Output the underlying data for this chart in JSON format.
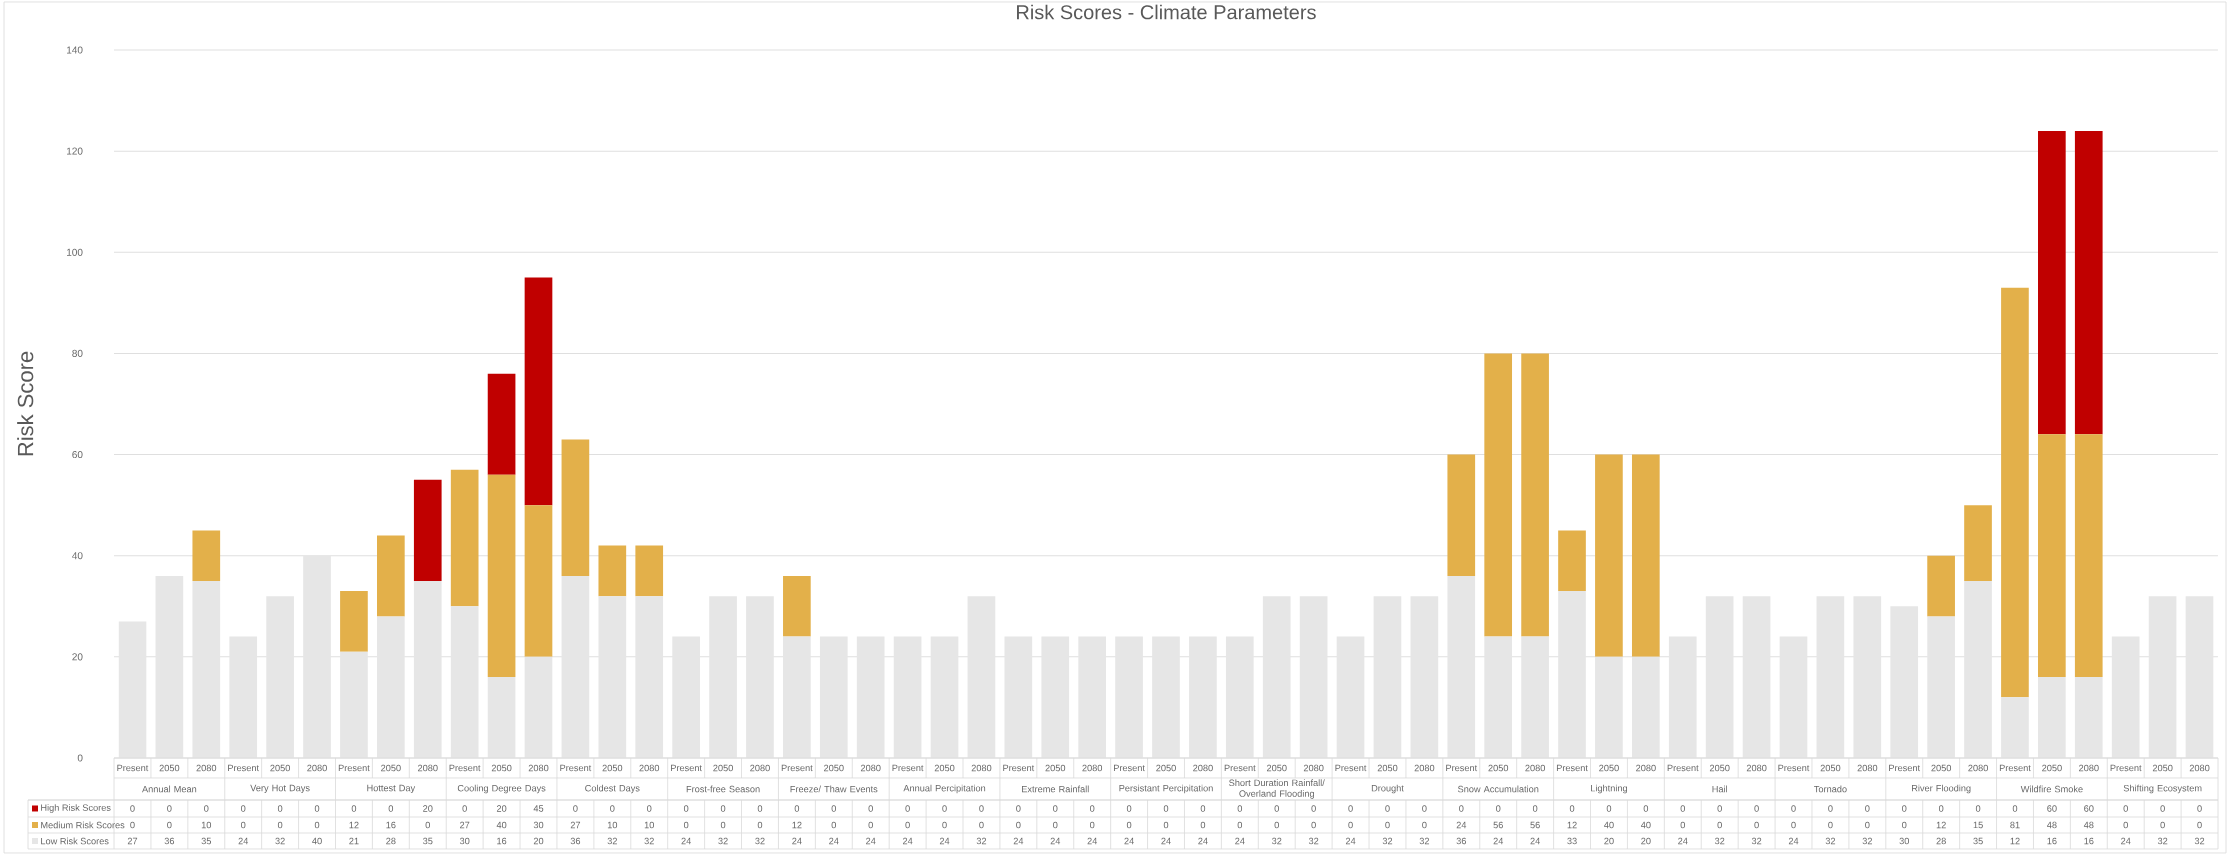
{
  "chart_data": {
    "type": "bar",
    "stacked": true,
    "title": "Risk Scores - Climate Parameters",
    "ylabel": "Risk Score",
    "categories": [
      "Present",
      "2050",
      "2080",
      "Present",
      "2050",
      "2080",
      "Present",
      "2050",
      "2080",
      "Present",
      "2050",
      "2080",
      "Present",
      "2050",
      "2080",
      "Present",
      "2050",
      "2080",
      "Present",
      "2050",
      "2080",
      "Present",
      "2050",
      "2080",
      "Present",
      "2050",
      "2080",
      "Present",
      "2050",
      "2080",
      "Present",
      "2050",
      "2080",
      "Present",
      "2050",
      "2080",
      "Present",
      "2050",
      "2080",
      "Present",
      "2050",
      "2080",
      "Present",
      "2050",
      "2080",
      "Present",
      "2050",
      "2080",
      "Present",
      "2050",
      "2080",
      "Present",
      "2050",
      "2080",
      "Present",
      "2050",
      "2080"
    ],
    "annotations": [
      "Annual Mean",
      "Very Hot Days",
      "Hottest Day",
      "Cooling Degree Days",
      "Coldest Days",
      "Frost-free Season",
      "Freeze/ Thaw Events",
      "Annual Percipitation",
      "Extreme Rainfall",
      "Persistant Percipitation",
      "Short Duration Rainfall/ Overland Flooding",
      "Drought",
      "Snow Accumulation",
      "Lightning",
      "Hail",
      "Tornado",
      "River Flooding",
      "Wildfire  Smoke",
      "Shifting Ecosystem"
    ],
    "series": [
      {
        "name": "Low Risk Scores",
        "color": "#e6e6e6",
        "values": [
          27,
          36,
          35,
          24,
          32,
          40,
          21,
          28,
          35,
          30,
          16,
          20,
          36,
          32,
          32,
          24,
          32,
          32,
          24,
          24,
          24,
          24,
          24,
          32,
          24,
          24,
          24,
          24,
          24,
          24,
          24,
          32,
          32,
          24,
          32,
          32,
          36,
          24,
          24,
          33,
          20,
          20,
          24,
          32,
          32,
          24,
          32,
          32,
          30,
          28,
          35,
          12,
          16,
          16,
          24,
          32,
          32
        ]
      },
      {
        "name": "Medium Risk Scores",
        "color": "#e3b04a",
        "values": [
          0,
          0,
          10,
          0,
          0,
          0,
          12,
          16,
          0,
          27,
          40,
          30,
          27,
          10,
          10,
          0,
          0,
          0,
          12,
          0,
          0,
          0,
          0,
          0,
          0,
          0,
          0,
          0,
          0,
          0,
          0,
          0,
          0,
          0,
          0,
          0,
          24,
          56,
          56,
          12,
          40,
          40,
          0,
          0,
          0,
          0,
          0,
          0,
          0,
          12,
          15,
          81,
          48,
          48,
          0,
          0,
          0
        ]
      },
      {
        "name": "High Risk Scores",
        "color": "#c00000",
        "values": [
          0,
          0,
          0,
          0,
          0,
          0,
          0,
          0,
          20,
          0,
          20,
          45,
          0,
          0,
          0,
          0,
          0,
          0,
          0,
          0,
          0,
          0,
          0,
          0,
          0,
          0,
          0,
          0,
          0,
          0,
          0,
          0,
          0,
          0,
          0,
          0,
          0,
          0,
          0,
          0,
          0,
          0,
          0,
          0,
          0,
          0,
          0,
          0,
          0,
          0,
          0,
          0,
          60,
          60,
          0,
          0,
          0
        ]
      }
    ],
    "ylim": [
      0,
      140
    ],
    "yticks": [
      0,
      20,
      40,
      60,
      80,
      100,
      120,
      140
    ],
    "grid": "y",
    "legend": "bottom left",
    "data_labels": true
  }
}
